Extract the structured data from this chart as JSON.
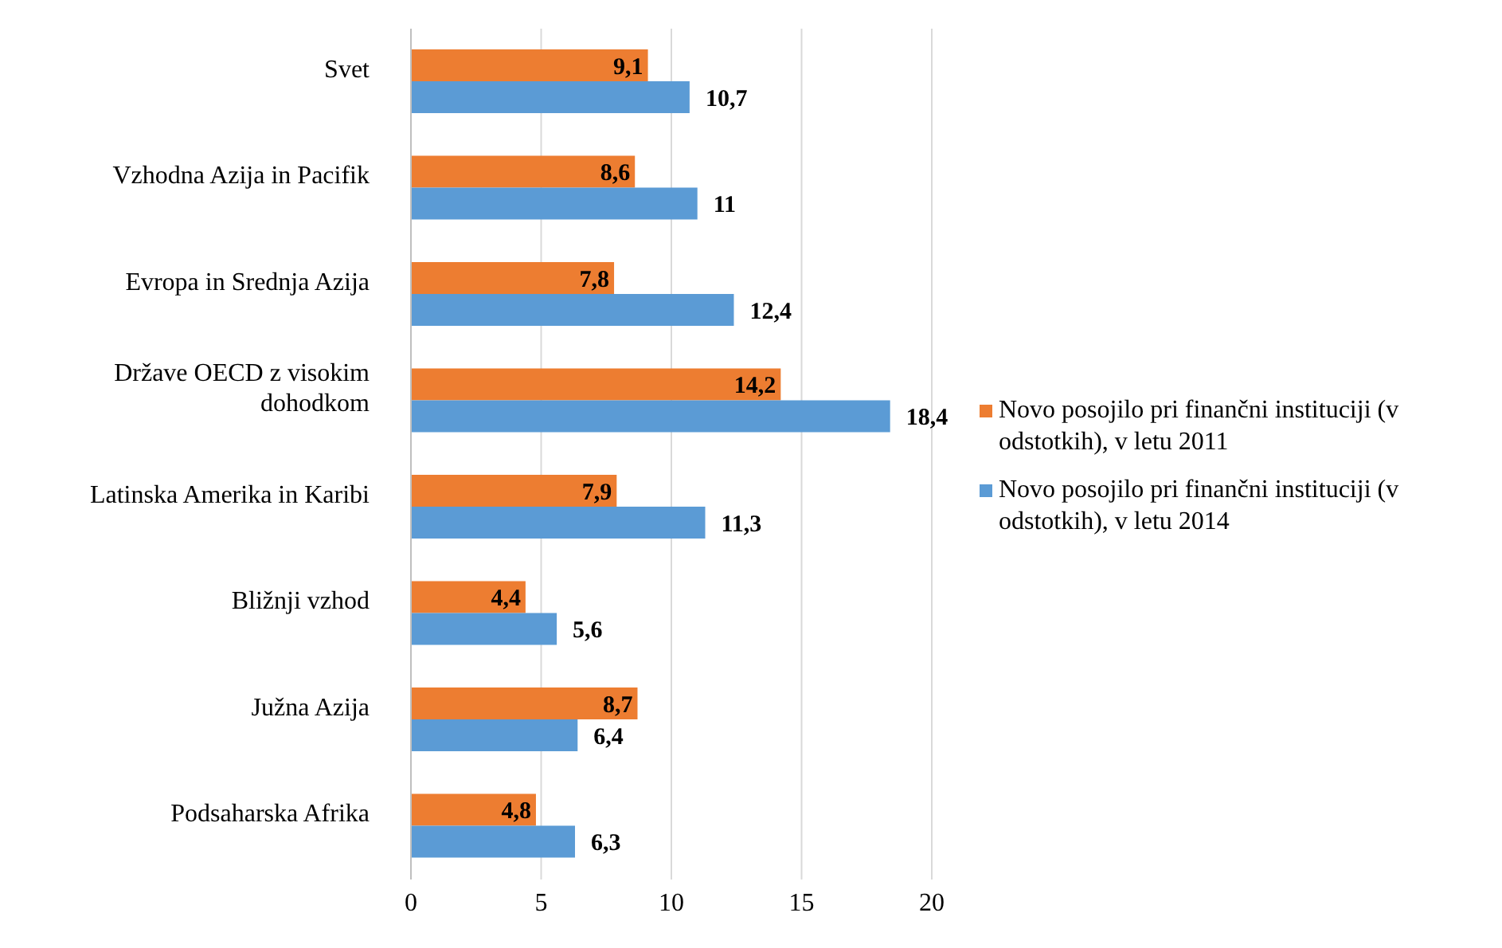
{
  "chart_data": {
    "type": "bar",
    "orientation": "horizontal",
    "categories": [
      "Svet",
      "Vzhodna Azija in Pacifik",
      "Evropa in Srednja Azija",
      "Države OECD z visokim dohodkom",
      "Latinska Amerika in Karibi",
      "Bližnji vzhod",
      "Južna Azija",
      "Podsaharska Afrika"
    ],
    "series": [
      {
        "name": "Novo posojilo pri finančni instituciji (v odstotkih), v letu 2011",
        "color": "#ed7d31",
        "values": [
          9.1,
          8.6,
          7.8,
          14.2,
          7.9,
          4.4,
          8.7,
          4.8
        ],
        "value_labels": [
          "9,1",
          "8,6",
          "7,8",
          "14,2",
          "7,9",
          "4,4",
          "8,7",
          "4,8"
        ]
      },
      {
        "name": "Novo posojilo pri finančni instituciji (v odstotkih), v letu 2014",
        "color": "#5b9bd5",
        "values": [
          10.7,
          11,
          12.4,
          18.4,
          11.3,
          5.6,
          6.4,
          6.3
        ],
        "value_labels": [
          "10,7",
          "11",
          "12,4",
          "18,4",
          "11,3",
          "5,6",
          "6,4",
          "6,3"
        ]
      }
    ],
    "xlim": [
      0,
      20
    ],
    "xticks": [
      0,
      5,
      10,
      15,
      20
    ],
    "grid": "x",
    "legend": "right"
  }
}
